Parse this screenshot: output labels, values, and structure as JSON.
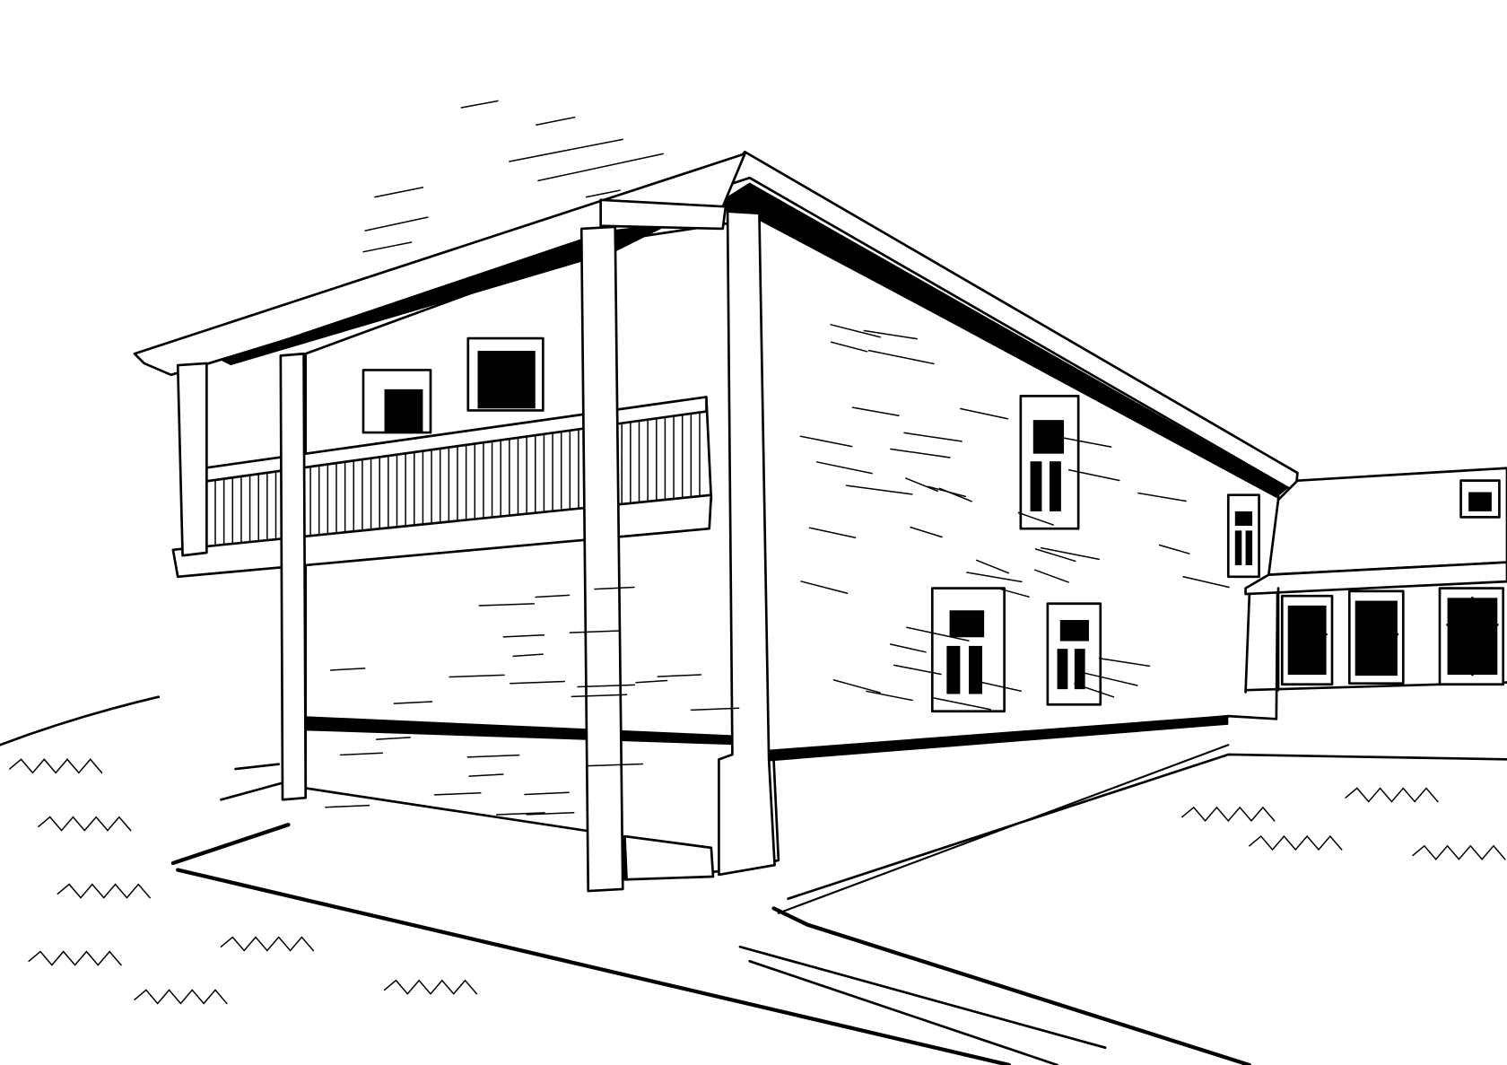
{
  "illustration": {
    "subject": "line-drawing-two-storey-building-with-balcony",
    "colors": {
      "ink": "#000000",
      "paper": "#ffffff"
    }
  }
}
